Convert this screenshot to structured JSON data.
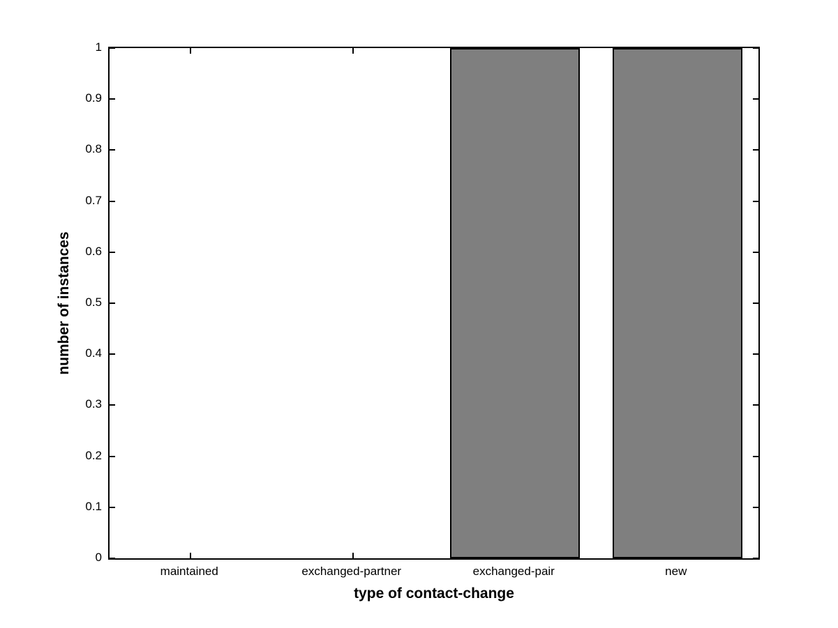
{
  "chart_data": {
    "type": "bar",
    "categories": [
      "maintained",
      "exchanged-partner",
      "exchanged-pair",
      "new"
    ],
    "values": [
      0,
      0,
      1,
      1
    ],
    "title": "",
    "xlabel": "type of contact-change",
    "ylabel": "number of instances",
    "ylim": [
      0,
      1
    ],
    "ytick_step": 0.1,
    "ytick_labels": [
      "0",
      "0.1",
      "0.2",
      "0.3",
      "0.4",
      "0.5",
      "0.6",
      "0.7",
      "0.8",
      "0.9",
      "1"
    ],
    "bar_width_fraction": 0.8,
    "grid": false,
    "legend": null,
    "colors": {
      "bar_fill": "#7f7f7f",
      "bar_edge": "#000000",
      "axis": "#000000",
      "text": "#000000",
      "background": "#ffffff"
    }
  }
}
